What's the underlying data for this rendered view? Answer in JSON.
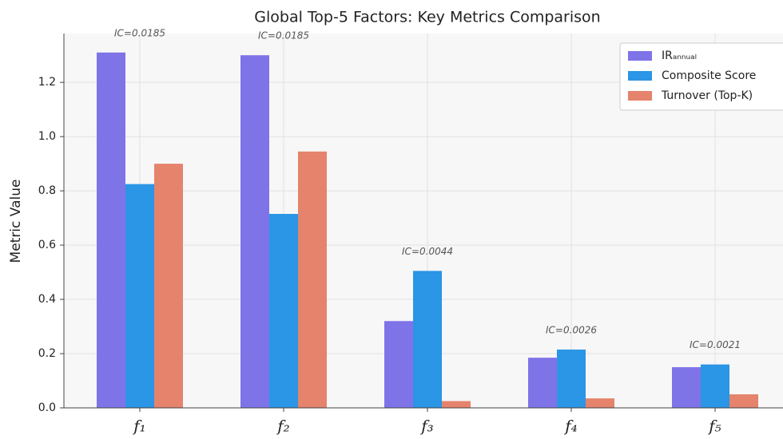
{
  "chart_data": {
    "type": "bar",
    "title": "Global Top-5 Factors: Key Metrics Comparison",
    "ylabel": "Metric Value",
    "categories": [
      "f₁",
      "f₂",
      "f₃",
      "f₄",
      "f₅"
    ],
    "series": [
      {
        "name": "IRₐₙₙᵤₐₗ",
        "color": "#7f73e8",
        "values": [
          1.31,
          1.3,
          0.32,
          0.185,
          0.15
        ]
      },
      {
        "name": "Composite Score",
        "color": "#2b95e6",
        "values": [
          0.825,
          0.715,
          0.505,
          0.215,
          0.16
        ]
      },
      {
        "name": "Turnover (Top-K)",
        "color": "#e5836c",
        "values": [
          0.9,
          0.945,
          0.025,
          0.035,
          0.05
        ]
      }
    ],
    "annotations": [
      "IC=0.0185",
      "IC=0.0185",
      "IC=0.0044",
      "IC=0.0026",
      "IC=0.0021"
    ],
    "ylim": [
      0,
      1.38
    ],
    "yticks": [
      {
        "value": 0,
        "label": "0.0"
      },
      0.2,
      0.4,
      0.6,
      0.8,
      {
        "value": 1,
        "label": "1.0"
      },
      1.2
    ],
    "grid": true,
    "legend": "upper right"
  }
}
